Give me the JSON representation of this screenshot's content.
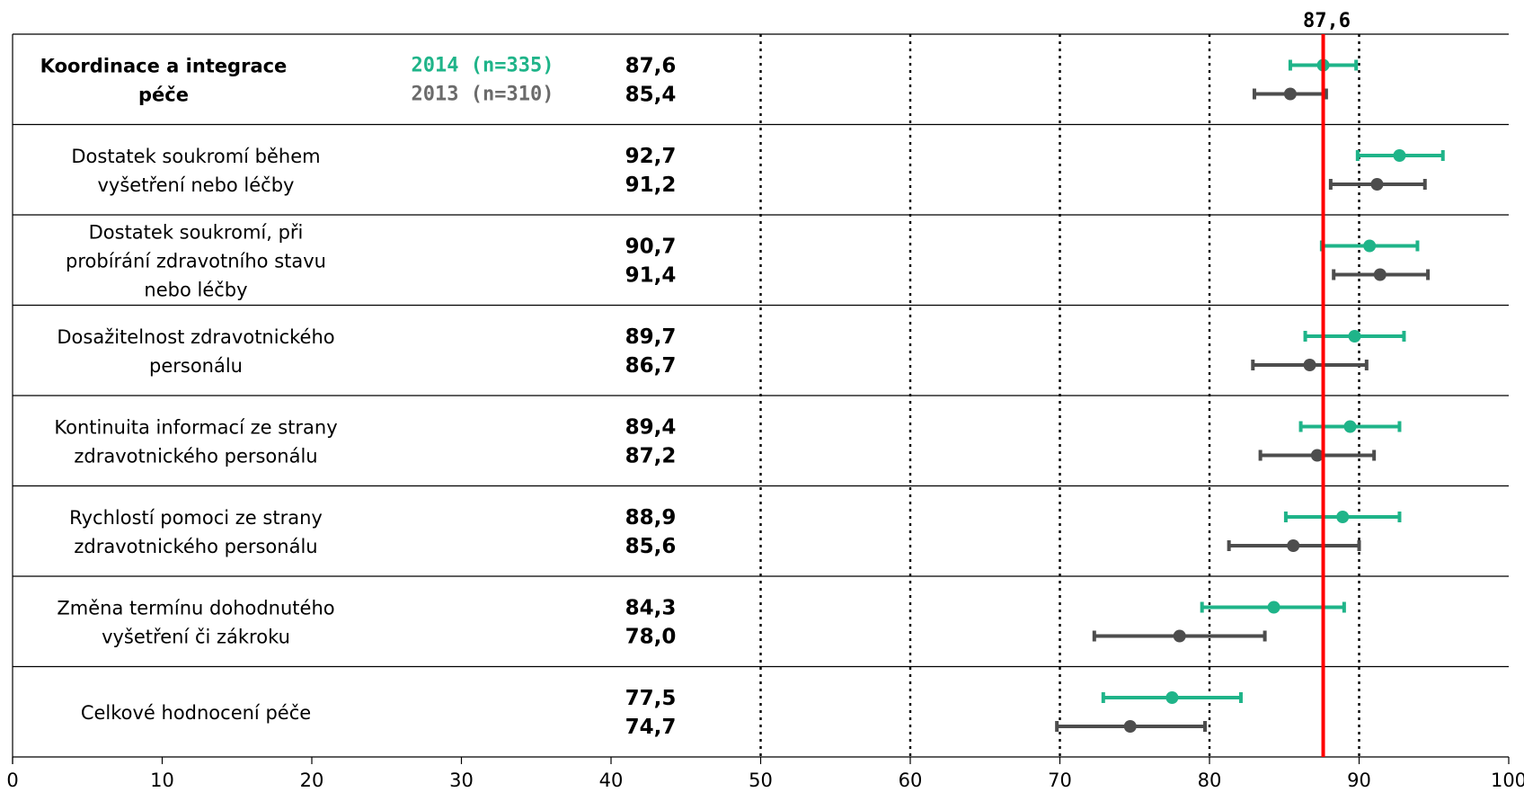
{
  "chart_data": {
    "type": "scatter",
    "subtype": "dot-plot-with-confidence-intervals",
    "xlim": [
      0,
      100
    ],
    "x_ticks": [
      "0",
      "10",
      "20",
      "30",
      "40",
      "50",
      "60",
      "70",
      "80",
      "90",
      "100"
    ],
    "dotted_gridlines_at": [
      50,
      60,
      70,
      80,
      90
    ],
    "reference_line": {
      "value": 87.6,
      "label": "87,6",
      "color": "#ff0000"
    },
    "colors": {
      "2014": "#1fb489",
      "2013": "#4d4d4d",
      "reference": "#ff0000"
    },
    "legend": [
      {
        "name": "2014 (n=335)",
        "color": "#1fb489"
      },
      {
        "name": "2013 (n=310)",
        "color": "#6b6b6b"
      }
    ],
    "categories": [
      {
        "label": "Koordinace a integrace\npéče",
        "bold": true,
        "v2014": 87.6,
        "v2014_label": "87,6",
        "ci2014": [
          85.4,
          89.8
        ],
        "v2013": 85.4,
        "v2013_label": "85,4",
        "ci2013": [
          83.0,
          87.8
        ]
      },
      {
        "label": "Dostatek soukromí během\nvyšetření nebo léčby",
        "bold": false,
        "v2014": 92.7,
        "v2014_label": "92,7",
        "ci2014": [
          89.9,
          95.6
        ],
        "v2013": 91.2,
        "v2013_label": "91,2",
        "ci2013": [
          88.1,
          94.4
        ]
      },
      {
        "label": "Dostatek soukromí, při\nprobírání zdravotního stavu\nnebo léčby",
        "bold": false,
        "v2014": 90.7,
        "v2014_label": "90,7",
        "ci2014": [
          87.5,
          93.9
        ],
        "v2013": 91.4,
        "v2013_label": "91,4",
        "ci2013": [
          88.3,
          94.6
        ]
      },
      {
        "label": "Dosažitelnost zdravotnického\npersonálu",
        "bold": false,
        "v2014": 89.7,
        "v2014_label": "89,7",
        "ci2014": [
          86.4,
          93.0
        ],
        "v2013": 86.7,
        "v2013_label": "86,7",
        "ci2013": [
          82.9,
          90.5
        ]
      },
      {
        "label": "Kontinuita informací ze strany\nzdravotnického personálu",
        "bold": false,
        "v2014": 89.4,
        "v2014_label": "89,4",
        "ci2014": [
          86.1,
          92.7
        ],
        "v2013": 87.2,
        "v2013_label": "87,2",
        "ci2013": [
          83.4,
          91.0
        ]
      },
      {
        "label": "Rychlostí pomoci ze strany\nzdravotnického personálu",
        "bold": false,
        "v2014": 88.9,
        "v2014_label": "88,9",
        "ci2014": [
          85.1,
          92.7
        ],
        "v2013": 85.6,
        "v2013_label": "85,6",
        "ci2013": [
          81.3,
          90.0
        ]
      },
      {
        "label": "Změna termínu dohodnutého\nvyšetření či zákroku",
        "bold": false,
        "v2014": 84.3,
        "v2014_label": "84,3",
        "ci2014": [
          79.5,
          89.0
        ],
        "v2013": 78.0,
        "v2013_label": "78,0",
        "ci2013": [
          72.3,
          83.7
        ]
      },
      {
        "label": "Celkové hodnocení péče",
        "bold": false,
        "v2014": 77.5,
        "v2014_label": "77,5",
        "ci2014": [
          72.9,
          82.1
        ],
        "v2013": 74.7,
        "v2013_label": "74,7",
        "ci2013": [
          69.8,
          79.7
        ]
      }
    ]
  }
}
